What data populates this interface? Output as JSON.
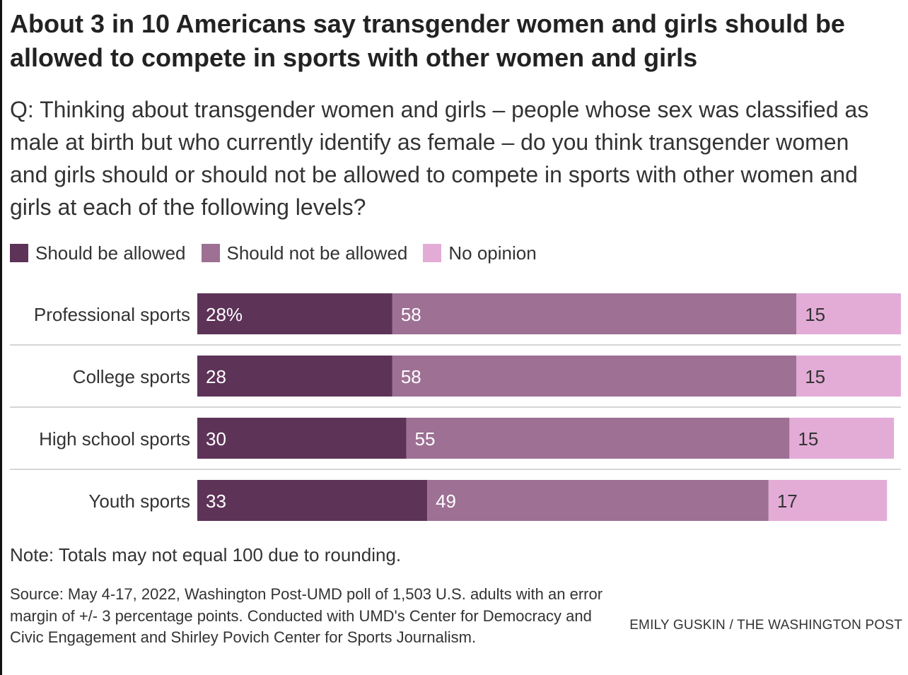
{
  "title": "About 3 in 10 Americans say transgender women and girls should be allowed to compete in sports with other women and girls",
  "subtitle": "Q: Thinking about transgender women and girls – people whose sex was classified as male at birth but who currently identify as female – do you think transgender women and girls should or should not be allowed to compete in sports with other women and girls at each of the following levels?",
  "chart_data": {
    "type": "bar",
    "orientation": "horizontal",
    "stacked": true,
    "categories": [
      "Professional sports",
      "College sports",
      "High school sports",
      "Youth sports"
    ],
    "series": [
      {
        "name": "Should be allowed",
        "values": [
          28,
          28,
          30,
          33
        ],
        "color": "#5e3358"
      },
      {
        "name": "Should not be allowed",
        "values": [
          58,
          58,
          55,
          49
        ],
        "color": "#9d7094"
      },
      {
        "name": "No opinion",
        "values": [
          15,
          15,
          15,
          17
        ],
        "color": "#e3acd7"
      }
    ],
    "value_labels": [
      [
        "28%",
        "58",
        "15"
      ],
      [
        "28",
        "58",
        "15"
      ],
      [
        "30",
        "55",
        "15"
      ],
      [
        "33",
        "49",
        "17"
      ]
    ],
    "xlim": [
      0,
      101
    ],
    "legend_position": "top-left",
    "grid": false,
    "row_separators": true
  },
  "note": "Note: Totals may not equal 100 due to rounding.",
  "source": "Source: May 4-17, 2022, Washington Post-UMD poll of 1,503 U.S. adults with an error margin of +/- 3 percentage points. Conducted with UMD's Center for Democracy and Civic Engagement and Shirley Povich Center for Sports Journalism.",
  "credit": "EMILY GUSKIN / THE WASHINGTON POST"
}
